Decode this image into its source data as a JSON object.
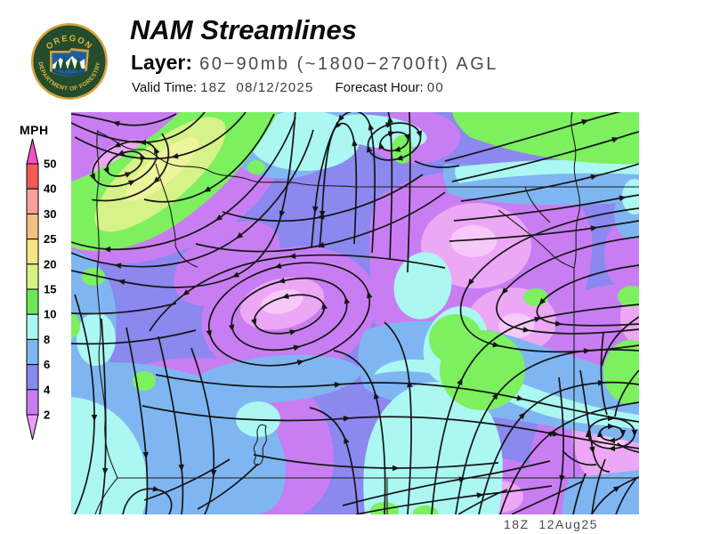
{
  "header": {
    "title": "NAM Streamlines",
    "layer_label": "Layer:",
    "layer_value": "60−90mb (~1800−2700ft) AGL",
    "valid_time_label": "Valid Time: ",
    "valid_time_value": "18Z  08/12/2025",
    "forecast_hour_label": "Forecast Hour: ",
    "forecast_hour_value": "00"
  },
  "logo": {
    "top_text": "OREGON",
    "bottom_text": "DEPARTMENT OF FORESTRY",
    "ring_color": "#d8a33c",
    "disc_color": "#234d2c",
    "emblem_sky_color": "#1d5f9e",
    "emblem_tree_color": "#1e4d2b"
  },
  "legend": {
    "title": "MPH",
    "tick_labels": [
      "50",
      "40",
      "30",
      "25",
      "20",
      "15",
      "10",
      "8",
      "6",
      "4",
      "2"
    ],
    "segment_colors": [
      "#f35b55",
      "#f6a29b",
      "#f2c083",
      "#f5e584",
      "#d5f285",
      "#6fe658",
      "#abf7f2",
      "#7fb6f2",
      "#8b88ef",
      "#c87ef2"
    ],
    "arrow_top_color": "#f94fc6",
    "arrow_bottom_color": "#e9a2f3"
  },
  "map": {
    "timestamp": "18Z  12Aug25",
    "palette": {
      "base": "#8b88ef",
      "purple": "#c87ef2",
      "pink": "#eca8f5",
      "palepink": "#f6c9f8",
      "lblue": "#7fb6f2",
      "cyan": "#abf7f2",
      "green": "#7cf05f",
      "ygreen": "#d6f288",
      "pyellow": "#eef49c",
      "stream": "#151515",
      "boundary": "#1c1c1c"
    }
  }
}
